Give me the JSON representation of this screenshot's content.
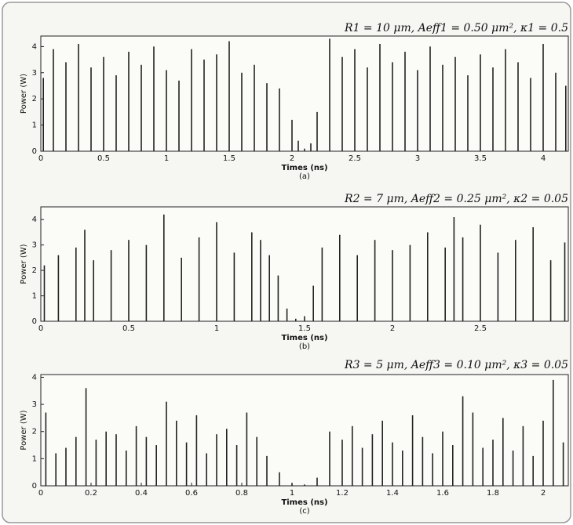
{
  "chart_data": [
    {
      "type": "stem",
      "title": "R1 = 10 μm, Aeff1 = 0.50 μm², κ1 = 0.5",
      "xlabel": "Times (ns)",
      "ylabel": "Power (W)",
      "caption": "(a)",
      "color": "#222222",
      "xlim": [
        0,
        4.2
      ],
      "xticks": [
        0,
        0.5,
        1,
        1.5,
        2,
        2.5,
        3,
        3.5,
        4
      ],
      "ylim": [
        0,
        4.4
      ],
      "yticks": [
        0,
        1,
        2,
        3,
        4
      ],
      "x": [
        0.02,
        0.1,
        0.2,
        0.3,
        0.4,
        0.5,
        0.6,
        0.7,
        0.8,
        0.9,
        1.0,
        1.1,
        1.2,
        1.3,
        1.4,
        1.5,
        1.6,
        1.7,
        1.8,
        1.9,
        2.0,
        2.05,
        2.1,
        2.15,
        2.2,
        2.3,
        2.4,
        2.5,
        2.6,
        2.7,
        2.8,
        2.9,
        3.0,
        3.1,
        3.2,
        3.3,
        3.4,
        3.5,
        3.6,
        3.7,
        3.8,
        3.9,
        4.0,
        4.1,
        4.18
      ],
      "values": [
        2.8,
        3.9,
        3.4,
        4.1,
        3.2,
        3.6,
        2.9,
        3.8,
        3.3,
        4.0,
        3.1,
        2.7,
        3.9,
        3.5,
        3.7,
        4.2,
        3.0,
        3.3,
        2.6,
        2.4,
        1.2,
        0.4,
        0.1,
        0.3,
        1.5,
        4.3,
        3.6,
        3.9,
        3.2,
        4.1,
        3.4,
        3.8,
        3.1,
        4.0,
        3.3,
        3.6,
        2.9,
        3.7,
        3.2,
        3.9,
        3.4,
        2.8,
        4.1,
        3.0,
        2.5
      ]
    },
    {
      "type": "stem",
      "title": "R2 = 7 μm, Aeff2 = 0.25 μm², κ2 = 0.05",
      "xlabel": "Times (ns)",
      "ylabel": "Power (W)",
      "caption": "(b)",
      "color": "#222222",
      "xlim": [
        0,
        3.0
      ],
      "xticks": [
        0,
        0.5,
        1,
        1.5,
        2,
        2.5
      ],
      "ylim": [
        0,
        4.5
      ],
      "yticks": [
        0,
        1,
        2,
        3,
        4
      ],
      "x": [
        0.02,
        0.1,
        0.2,
        0.25,
        0.3,
        0.4,
        0.5,
        0.6,
        0.7,
        0.8,
        0.9,
        1.0,
        1.1,
        1.2,
        1.25,
        1.3,
        1.35,
        1.4,
        1.45,
        1.5,
        1.55,
        1.6,
        1.7,
        1.8,
        1.9,
        2.0,
        2.1,
        2.2,
        2.3,
        2.35,
        2.4,
        2.5,
        2.6,
        2.7,
        2.8,
        2.9,
        2.98
      ],
      "values": [
        2.2,
        2.6,
        2.9,
        3.6,
        2.4,
        2.8,
        3.2,
        3.0,
        4.2,
        2.5,
        3.3,
        3.9,
        2.7,
        3.5,
        3.2,
        2.6,
        1.8,
        0.5,
        0.1,
        0.2,
        1.4,
        2.9,
        3.4,
        2.6,
        3.2,
        2.8,
        3.0,
        3.5,
        2.9,
        4.1,
        3.3,
        3.8,
        2.7,
        3.2,
        3.7,
        2.4,
        3.1
      ]
    },
    {
      "type": "stem",
      "title": "R3 = 5 μm, Aeff3 = 0.10 μm², κ3 = 0.05",
      "xlabel": "Times (ns)",
      "ylabel": "Power (W)",
      "caption": "(c)",
      "color": "#222222",
      "xlim": [
        0,
        2.1
      ],
      "xticks": [
        0,
        0.2,
        0.4,
        0.6,
        0.8,
        1,
        1.2,
        1.4,
        1.6,
        1.8,
        2
      ],
      "ylim": [
        0,
        4.1
      ],
      "yticks": [
        0,
        1,
        2,
        3,
        4
      ],
      "x": [
        0.02,
        0.06,
        0.1,
        0.14,
        0.18,
        0.22,
        0.26,
        0.3,
        0.34,
        0.38,
        0.42,
        0.46,
        0.5,
        0.54,
        0.58,
        0.62,
        0.66,
        0.7,
        0.74,
        0.78,
        0.82,
        0.86,
        0.9,
        0.95,
        1.0,
        1.05,
        1.1,
        1.15,
        1.2,
        1.24,
        1.28,
        1.32,
        1.36,
        1.4,
        1.44,
        1.48,
        1.52,
        1.56,
        1.6,
        1.64,
        1.68,
        1.72,
        1.76,
        1.8,
        1.84,
        1.88,
        1.92,
        1.96,
        2.0,
        2.04,
        2.08
      ],
      "values": [
        2.7,
        1.2,
        1.4,
        1.8,
        3.6,
        1.7,
        2.0,
        1.9,
        1.3,
        2.2,
        1.8,
        1.5,
        3.1,
        2.4,
        1.6,
        2.6,
        1.2,
        1.9,
        2.1,
        1.5,
        2.7,
        1.8,
        1.1,
        0.5,
        0.1,
        0.05,
        0.3,
        2.0,
        1.7,
        2.2,
        1.4,
        1.9,
        2.4,
        1.6,
        1.3,
        2.6,
        1.8,
        1.2,
        2.0,
        1.5,
        3.3,
        2.7,
        1.4,
        1.7,
        2.5,
        1.3,
        2.2,
        1.1,
        2.4,
        3.9,
        1.6
      ]
    }
  ]
}
